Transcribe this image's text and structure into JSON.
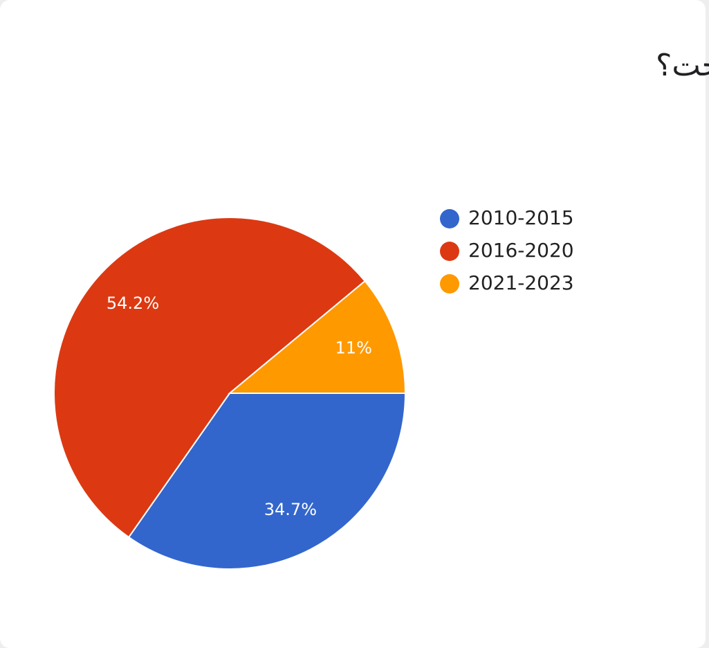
{
  "chart_data": {
    "type": "pie",
    "title": "في أي عام تخرجت؟",
    "categories": [
      "2010-2015",
      "2016-2020",
      "2021-2023"
    ],
    "values": [
      34.7,
      54.2,
      11
    ],
    "value_labels": [
      "34.7%",
      "54.2%",
      "11%"
    ],
    "colors": [
      "#3366cc",
      "#dc3912",
      "#ff9900"
    ],
    "legend": "right"
  }
}
